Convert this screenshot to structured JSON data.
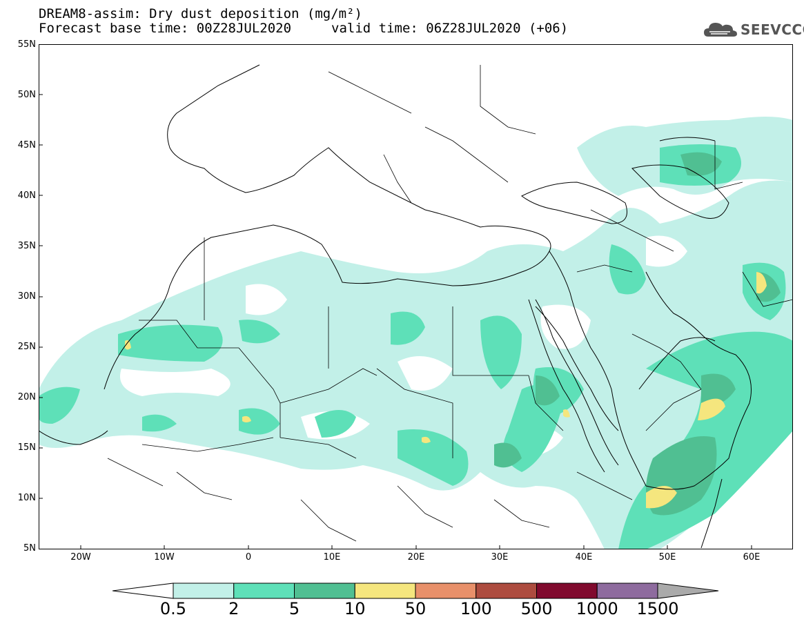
{
  "header": {
    "title": "DREAM8-assim: Dry dust deposition (mg/m²)",
    "base_time": "Forecast base time: 00Z28JUL2020",
    "valid_time": "valid time: 06Z28JUL2020 (+06)",
    "logo_text": "SEEVCCC"
  },
  "axes": {
    "y_labels": [
      "55N",
      "50N",
      "45N",
      "40N",
      "35N",
      "30N",
      "25N",
      "20N",
      "15N",
      "10N",
      "5N"
    ],
    "x_labels": [
      "20W",
      "10W",
      "0",
      "10E",
      "20E",
      "30E",
      "40E",
      "50E",
      "60E"
    ]
  },
  "colorbar": {
    "labels": [
      "0.5",
      "2",
      "5",
      "10",
      "50",
      "100",
      "500",
      "1000",
      "1500"
    ],
    "colors": [
      "#c2f0e8",
      "#5ee0b8",
      "#50bf92",
      "#f5e67e",
      "#e8906a",
      "#ad4c3f",
      "#800a2e",
      "#8e6b9e"
    ],
    "over_color": "#aaaaaa",
    "under_color": "#ffffff"
  },
  "map": {
    "lon_range": [
      -25,
      65
    ],
    "lat_range": [
      5,
      55
    ],
    "ocean_color": "#ffffff",
    "line_color": "#000000"
  }
}
